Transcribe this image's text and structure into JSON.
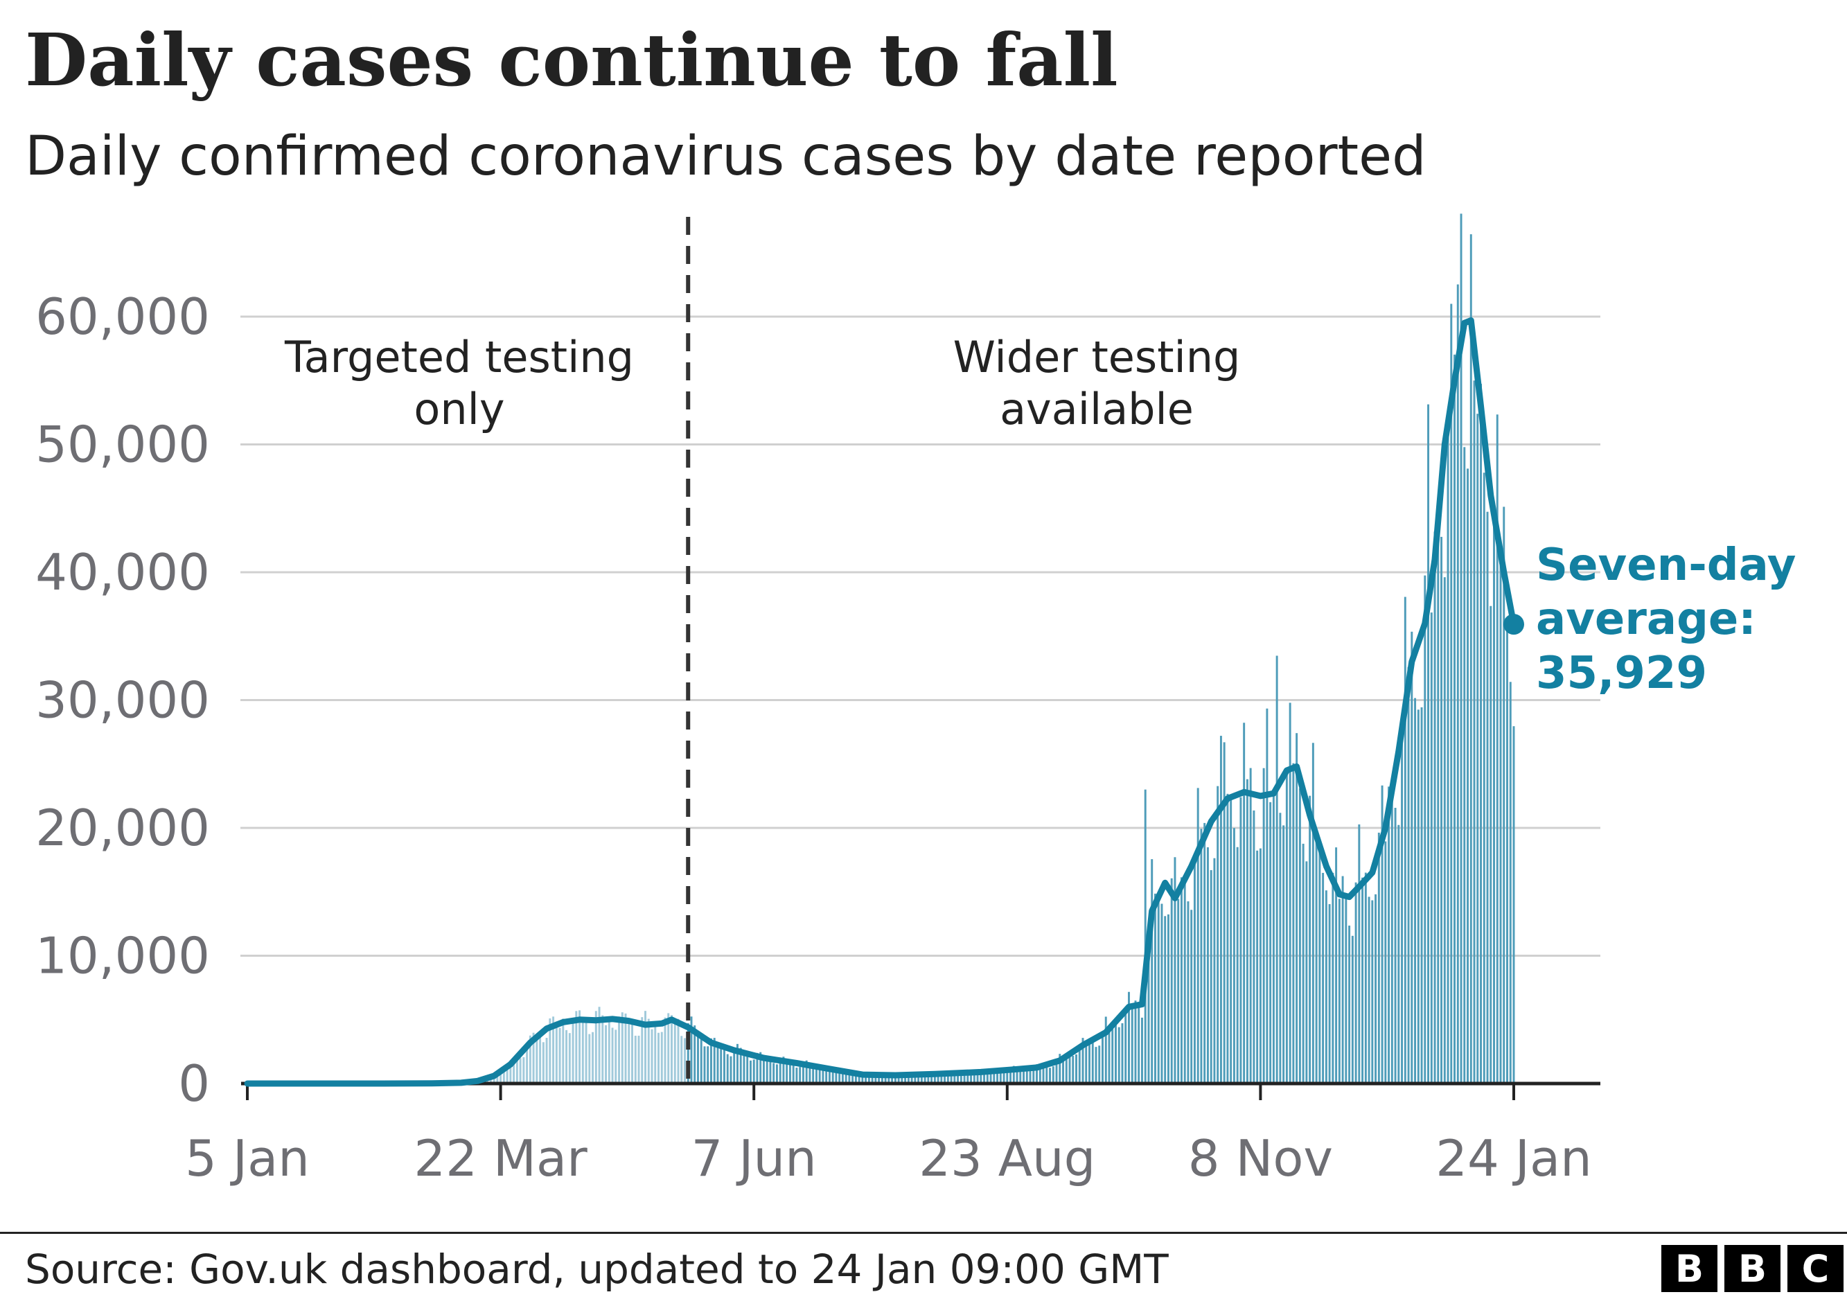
{
  "title": "Daily cases continue to fall",
  "subtitle": "Daily confirmed coronavirus cases by date reported",
  "source": "Source: Gov.uk dashboard, updated to 24 Jan 09:00 GMT",
  "logo": {
    "letters": [
      "B",
      "B",
      "C"
    ]
  },
  "colors": {
    "accent": "#1380a1",
    "bar_before": "#a1cadb",
    "bar_after": "#4e9cb9",
    "grid": "#d0d0d0",
    "axis": "#222222",
    "tick_label": "#6e6e73",
    "divider": "#333333"
  },
  "chart_data": {
    "type": "bar",
    "x_tick_labels": [
      "5 Jan",
      "22 Mar",
      "7 Jun",
      "23 Aug",
      "8 Nov",
      "24 Jan"
    ],
    "x_range": [
      "2020-01-05",
      "2021-01-24"
    ],
    "ylim": [
      0,
      60000
    ],
    "y_ticks": [
      0,
      10000,
      20000,
      30000,
      40000,
      50000,
      60000
    ],
    "y_tick_labels": [
      "0",
      "10,000",
      "20,000",
      "30,000",
      "40,000",
      "50,000",
      "60,000"
    ],
    "grid": true,
    "divider_date": "2020-05-18",
    "annotations": {
      "before": [
        "Targeted testing",
        "only"
      ],
      "after": [
        "Wider testing",
        "available"
      ]
    },
    "series": [
      {
        "name": "Seven-day average",
        "type": "line",
        "points": [
          [
            "2020-01-05",
            0
          ],
          [
            "2020-02-15",
            0
          ],
          [
            "2020-03-01",
            10
          ],
          [
            "2020-03-10",
            60
          ],
          [
            "2020-03-15",
            200
          ],
          [
            "2020-03-20",
            600
          ],
          [
            "2020-03-25",
            1500
          ],
          [
            "2020-03-31",
            3200
          ],
          [
            "2020-04-05",
            4300
          ],
          [
            "2020-04-10",
            4800
          ],
          [
            "2020-04-15",
            5000
          ],
          [
            "2020-04-20",
            4950
          ],
          [
            "2020-04-25",
            5050
          ],
          [
            "2020-04-30",
            4900
          ],
          [
            "2020-05-05",
            4600
          ],
          [
            "2020-05-10",
            4700
          ],
          [
            "2020-05-13",
            5000
          ],
          [
            "2020-05-18",
            4400
          ],
          [
            "2020-05-25",
            3200
          ],
          [
            "2020-06-01",
            2600
          ],
          [
            "2020-06-10",
            2000
          ],
          [
            "2020-06-20",
            1600
          ],
          [
            "2020-07-01",
            1100
          ],
          [
            "2020-07-10",
            700
          ],
          [
            "2020-07-20",
            650
          ],
          [
            "2020-08-01",
            750
          ],
          [
            "2020-08-15",
            900
          ],
          [
            "2020-08-25",
            1100
          ],
          [
            "2020-09-01",
            1250
          ],
          [
            "2020-09-08",
            1800
          ],
          [
            "2020-09-15",
            3000
          ],
          [
            "2020-09-22",
            4000
          ],
          [
            "2020-09-29",
            6000
          ],
          [
            "2020-10-03",
            6200
          ],
          [
            "2020-10-06",
            13500
          ],
          [
            "2020-10-10",
            15700
          ],
          [
            "2020-10-13",
            14500
          ],
          [
            "2020-10-18",
            17000
          ],
          [
            "2020-10-24",
            20500
          ],
          [
            "2020-10-29",
            22300
          ],
          [
            "2020-11-03",
            22800
          ],
          [
            "2020-11-08",
            22500
          ],
          [
            "2020-11-12",
            22700
          ],
          [
            "2020-11-16",
            24500
          ],
          [
            "2020-11-19",
            24800
          ],
          [
            "2020-11-23",
            21000
          ],
          [
            "2020-11-28",
            17000
          ],
          [
            "2020-12-02",
            14800
          ],
          [
            "2020-12-05",
            14600
          ],
          [
            "2020-12-08",
            15400
          ],
          [
            "2020-12-12",
            16500
          ],
          [
            "2020-12-16",
            20000
          ],
          [
            "2020-12-20",
            26000
          ],
          [
            "2020-12-24",
            33000
          ],
          [
            "2020-12-28",
            36000
          ],
          [
            "2020-12-31",
            41000
          ],
          [
            "2021-01-03",
            50000
          ],
          [
            "2021-01-06",
            55000
          ],
          [
            "2021-01-09",
            59500
          ],
          [
            "2021-01-11",
            59700
          ],
          [
            "2021-01-14",
            53000
          ],
          [
            "2021-01-17",
            46000
          ],
          [
            "2021-01-21",
            40000
          ],
          [
            "2021-01-24",
            35929
          ]
        ],
        "last_value": 35929,
        "label_lines": [
          "Seven-day",
          "average:",
          "35,929"
        ]
      }
    ],
    "daily_spikes": [
      [
        "2020-10-04",
        23000
      ],
      [
        "2020-11-13",
        33470
      ],
      [
        "2020-12-29",
        53135
      ],
      [
        "2021-01-08",
        68053
      ],
      [
        "2020-10-28",
        26700
      ],
      [
        "2021-01-12",
        55000
      ],
      [
        "2021-01-05",
        61000
      ]
    ]
  }
}
